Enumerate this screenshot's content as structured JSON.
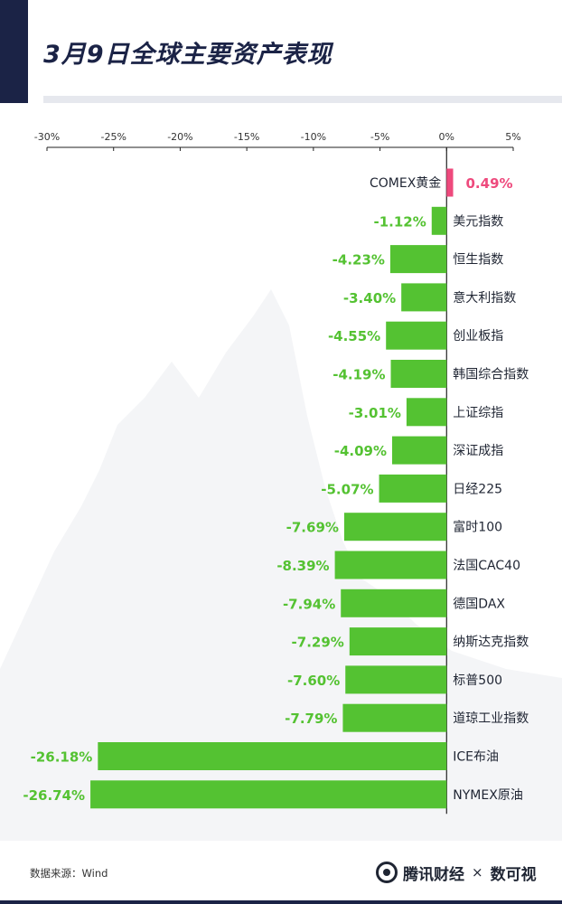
{
  "header": {
    "title": "3月9日全球主要资产表现"
  },
  "chart_data": {
    "type": "bar",
    "orientation": "horizontal",
    "title": "3月9日全球主要资产表现",
    "xlim": [
      -30,
      5
    ],
    "x_ticks": [
      "-30%",
      "-25%",
      "-20%",
      "-15%",
      "-10%",
      "-5%",
      "0%",
      "5%"
    ],
    "x_tick_values": [
      -30,
      -25,
      -20,
      -15,
      -10,
      -5,
      0,
      5
    ],
    "categories": [
      "COMEX黄金",
      "美元指数",
      "恒生指数",
      "意大利指数",
      "创业板指",
      "韩国综合指数",
      "上证综指",
      "深证成指",
      "日经225",
      "富时100",
      "法国CAC40",
      "德国DAX",
      "纳斯达克指数",
      "标普500",
      "道琼工业指数",
      "ICE布油",
      "NYMEX原油"
    ],
    "values": [
      0.49,
      -1.12,
      -4.23,
      -3.4,
      -4.55,
      -4.19,
      -3.01,
      -4.09,
      -5.07,
      -7.69,
      -8.39,
      -7.94,
      -7.29,
      -7.6,
      -7.79,
      -26.18,
      -26.74
    ],
    "value_labels": [
      "0.49%",
      "-1.12%",
      "-4.23%",
      "-3.40%",
      "-4.55%",
      "-4.19%",
      "-3.01%",
      "-4.09%",
      "-5.07%",
      "-7.69%",
      "-8.39%",
      "-7.94%",
      "-7.29%",
      "-7.60%",
      "-7.79%",
      "-26.18%",
      "-26.74%"
    ],
    "colors": {
      "positive": "#ee4a7d",
      "negative": "#54c232",
      "axis": "#222222"
    },
    "grid": false
  },
  "footer": {
    "source": "数据来源：Wind",
    "brand": "腾讯财经",
    "separator": "×",
    "partner": "数可视"
  },
  "colors": {
    "navy": "#1b2346"
  }
}
